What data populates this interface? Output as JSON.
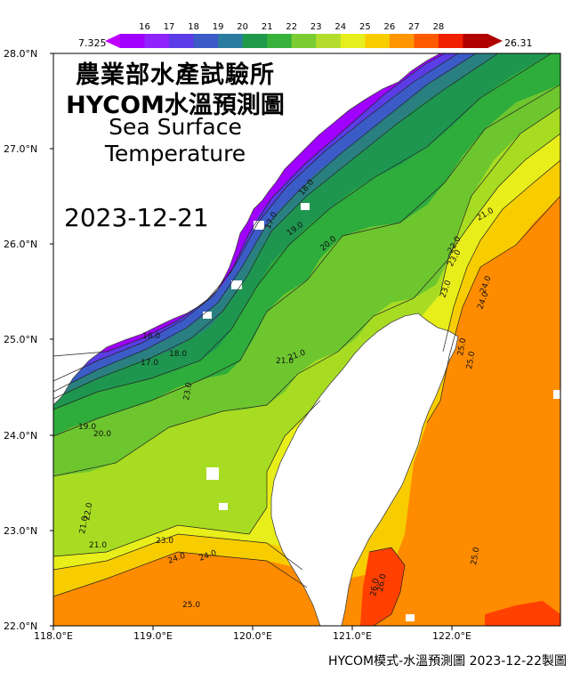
{
  "title": {
    "line1": "農業部水產試驗所",
    "line2": "HYCOM水溫預測圖",
    "line3": "Sea Surface",
    "line4": "Temperature"
  },
  "date": "2023-12-21",
  "footer": "HYCOM模式-水溫預測圖 2023-12-22製圖",
  "colorbar": {
    "min_label": "7.325",
    "max_label": "26.31",
    "ticks": [
      "16",
      "17",
      "18",
      "19",
      "20",
      "21",
      "22",
      "23",
      "24",
      "25",
      "26",
      "27",
      "28"
    ],
    "colors": [
      "#a000ff",
      "#8f24ff",
      "#5b3ce6",
      "#3b5cc7",
      "#2a7ca0",
      "#1f9a4a",
      "#38b23a",
      "#7ccd33",
      "#b4dc2d",
      "#e6ee1e",
      "#f8cd00",
      "#ff9600",
      "#ff5a00",
      "#f02000",
      "#b00000"
    ]
  },
  "axes": {
    "lon_labels": [
      "118.0°E",
      "119.0°E",
      "120.0°E",
      "121.0°E",
      "122.0°E"
    ],
    "lat_labels": [
      "22.0°N",
      "23.0°N",
      "24.0°N",
      "25.0°N",
      "26.0°N",
      "27.0°N",
      "28.0°N"
    ]
  },
  "contour_labels": [
    "16.0",
    "17.0",
    "18.0",
    "19.0",
    "20.0",
    "21.0",
    "22.0",
    "23.0",
    "24.0",
    "25.0",
    "26.0",
    "17.0",
    "18.0",
    "19.0",
    "20.0",
    "21.0",
    "21.0",
    "22.0",
    "23.0",
    "23.0",
    "24.0",
    "25.0",
    "25.0",
    "21.0",
    "21.0",
    "23.0",
    "24.0",
    "25.0",
    "26.0",
    "24.0"
  ],
  "colors": {
    "c16": "#a000ff",
    "c17": "#5b3ce6",
    "c18": "#3b5cc7",
    "c19": "#2a8080",
    "c20": "#1e9650",
    "c21": "#2eac3c",
    "c22": "#6ec62f",
    "c23": "#a8dc22",
    "c24": "#e8ee1a",
    "c25": "#f8cd00",
    "c26": "#ff8c00",
    "c27": "#ff4000",
    "land": "#ffffff"
  }
}
